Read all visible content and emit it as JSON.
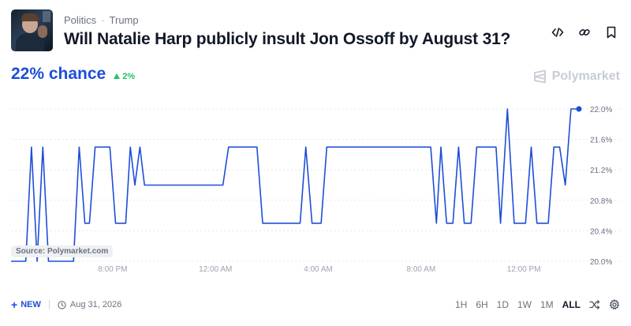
{
  "header": {
    "breadcrumbs": [
      "Politics",
      "Trump"
    ],
    "breadcrumb_separator": "·",
    "title": "Will Natalie Harp publicly insult Jon Ossoff by August 31?",
    "actions": [
      "embed-icon",
      "link-icon",
      "bookmark-icon"
    ]
  },
  "summary": {
    "chance": "22% chance",
    "delta": "2%",
    "delta_color": "#22c55e",
    "accent": "#1d4ed8"
  },
  "brand": {
    "name": "Polymarket"
  },
  "source_label": "Source: Polymarket.com",
  "footer": {
    "new_label": "NEW",
    "date": "Aug 31, 2026",
    "ranges": [
      "1H",
      "6H",
      "1D",
      "1W",
      "1M",
      "ALL"
    ],
    "active_range": "ALL"
  },
  "chart_data": {
    "type": "line",
    "ylim": [
      20.0,
      22.0
    ],
    "y_ticks": [
      "20.0%",
      "20.4%",
      "20.8%",
      "21.2%",
      "21.6%",
      "22.0%"
    ],
    "y_tick_values": [
      20.0,
      20.4,
      20.8,
      21.2,
      21.6,
      22.0
    ],
    "x_ticks": [
      {
        "label": "8:00 PM",
        "t": 0.179
      },
      {
        "label": "12:00 AM",
        "t": 0.36
      },
      {
        "label": "4:00 AM",
        "t": 0.541
      },
      {
        "label": "8:00 AM",
        "t": 0.722
      },
      {
        "label": "12:00 PM",
        "t": 0.903
      }
    ],
    "grid": true,
    "line_color": "#1d4ed8",
    "series": [
      {
        "points": [
          [
            0.0,
            20.0
          ],
          [
            0.02,
            20.0
          ],
          [
            0.026,
            20.0
          ],
          [
            0.036,
            21.5
          ],
          [
            0.046,
            20.0
          ],
          [
            0.056,
            21.5
          ],
          [
            0.066,
            20.0
          ],
          [
            0.11,
            20.0
          ],
          [
            0.12,
            21.5
          ],
          [
            0.13,
            20.5
          ],
          [
            0.138,
            20.5
          ],
          [
            0.148,
            21.5
          ],
          [
            0.174,
            21.5
          ],
          [
            0.184,
            20.5
          ],
          [
            0.202,
            20.5
          ],
          [
            0.21,
            21.5
          ],
          [
            0.218,
            21.0
          ],
          [
            0.227,
            21.5
          ],
          [
            0.235,
            21.0
          ],
          [
            0.373,
            21.0
          ],
          [
            0.383,
            21.5
          ],
          [
            0.433,
            21.5
          ],
          [
            0.443,
            20.5
          ],
          [
            0.509,
            20.5
          ],
          [
            0.519,
            21.5
          ],
          [
            0.53,
            20.5
          ],
          [
            0.546,
            20.5
          ],
          [
            0.556,
            21.5
          ],
          [
            0.739,
            21.5
          ],
          [
            0.749,
            20.5
          ],
          [
            0.757,
            21.5
          ],
          [
            0.767,
            20.5
          ],
          [
            0.778,
            20.5
          ],
          [
            0.788,
            21.5
          ],
          [
            0.798,
            20.5
          ],
          [
            0.81,
            20.5
          ],
          [
            0.82,
            21.5
          ],
          [
            0.854,
            21.5
          ],
          [
            0.862,
            20.5
          ],
          [
            0.874,
            22.0
          ],
          [
            0.886,
            20.5
          ],
          [
            0.906,
            20.5
          ],
          [
            0.916,
            21.5
          ],
          [
            0.926,
            20.5
          ],
          [
            0.946,
            20.5
          ],
          [
            0.956,
            21.5
          ],
          [
            0.966,
            21.5
          ],
          [
            0.976,
            21.0
          ],
          [
            0.986,
            22.0
          ],
          [
            1.0,
            22.0
          ]
        ]
      }
    ]
  }
}
